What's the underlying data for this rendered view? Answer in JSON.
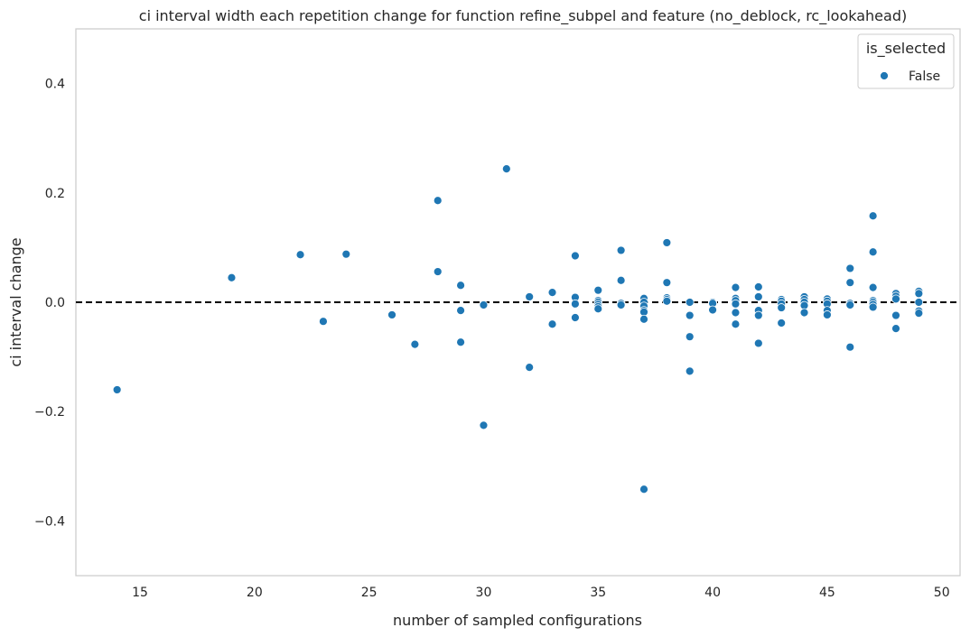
{
  "chart_data": {
    "type": "scatter",
    "title": "ci interval width each repetition change for function refine_subpel and feature (no_deblock, rc_lookahead)",
    "xlabel": "number of sampled configurations",
    "ylabel": "ci interval change",
    "xlim": [
      12.2,
      50.8
    ],
    "ylim": [
      -0.5,
      0.5
    ],
    "xticks": [
      15,
      20,
      25,
      30,
      35,
      40,
      45,
      50
    ],
    "yticks": [
      -0.4,
      -0.2,
      0.0,
      0.2,
      0.4
    ],
    "ytick_labels": [
      "−0.4",
      "−0.2",
      "0.0",
      "0.2",
      "0.4"
    ],
    "grid": false,
    "reference_line": {
      "y": 0.0,
      "style": "dashed",
      "color": "#000000"
    },
    "legend": {
      "title": "is_selected",
      "placement": "top-right",
      "entries": [
        "False"
      ]
    },
    "series": [
      {
        "name": "False",
        "color": "#1f77b4",
        "points": [
          [
            14,
            -0.16
          ],
          [
            19,
            0.045
          ],
          [
            22,
            0.087
          ],
          [
            23,
            -0.035
          ],
          [
            24,
            0.088
          ],
          [
            26,
            -0.023
          ],
          [
            27,
            -0.077
          ],
          [
            28,
            0.186
          ],
          [
            28,
            0.056
          ],
          [
            29,
            0.031
          ],
          [
            29,
            -0.015
          ],
          [
            29,
            -0.073
          ],
          [
            30,
            -0.005
          ],
          [
            30,
            -0.225
          ],
          [
            31,
            0.244
          ],
          [
            32,
            0.01
          ],
          [
            32,
            -0.119
          ],
          [
            33,
            0.018
          ],
          [
            33,
            -0.04
          ],
          [
            34,
            0.085
          ],
          [
            34,
            0.009
          ],
          [
            34,
            -0.003
          ],
          [
            34,
            -0.028
          ],
          [
            35,
            0.022
          ],
          [
            35,
            0.003
          ],
          [
            35,
            0.0
          ],
          [
            35,
            -0.004
          ],
          [
            35,
            -0.008
          ],
          [
            35,
            -0.012
          ],
          [
            36,
            0.095
          ],
          [
            36,
            0.04
          ],
          [
            36,
            -0.002
          ],
          [
            36,
            -0.005
          ],
          [
            37,
            0.007
          ],
          [
            37,
            0.0
          ],
          [
            37,
            -0.007
          ],
          [
            37,
            -0.015
          ],
          [
            37,
            -0.018
          ],
          [
            37,
            -0.031
          ],
          [
            37,
            -0.342
          ],
          [
            38,
            0.109
          ],
          [
            38,
            0.036
          ],
          [
            38,
            0.008
          ],
          [
            38,
            0.005
          ],
          [
            38,
            0.002
          ],
          [
            39,
            0.0
          ],
          [
            39,
            -0.024
          ],
          [
            39,
            -0.063
          ],
          [
            39,
            -0.126
          ],
          [
            40,
            0.0
          ],
          [
            40,
            -0.002
          ],
          [
            40,
            -0.014
          ],
          [
            41,
            0.027
          ],
          [
            41,
            0.007
          ],
          [
            41,
            0.003
          ],
          [
            41,
            -0.003
          ],
          [
            41,
            -0.019
          ],
          [
            41,
            -0.04
          ],
          [
            42,
            0.028
          ],
          [
            42,
            0.01
          ],
          [
            42,
            -0.015
          ],
          [
            42,
            -0.024
          ],
          [
            42,
            -0.075
          ],
          [
            43,
            0.005
          ],
          [
            43,
            0.002
          ],
          [
            43,
            -0.003
          ],
          [
            43,
            -0.01
          ],
          [
            43,
            -0.038
          ],
          [
            44,
            0.01
          ],
          [
            44,
            0.005
          ],
          [
            44,
            0.0
          ],
          [
            44,
            -0.006
          ],
          [
            44,
            -0.019
          ],
          [
            45,
            0.006
          ],
          [
            45,
            0.002
          ],
          [
            45,
            -0.003
          ],
          [
            45,
            -0.015
          ],
          [
            45,
            -0.023
          ],
          [
            46,
            0.062
          ],
          [
            46,
            0.036
          ],
          [
            46,
            -0.002
          ],
          [
            46,
            -0.005
          ],
          [
            46,
            -0.082
          ],
          [
            47,
            0.158
          ],
          [
            47,
            0.092
          ],
          [
            47,
            0.027
          ],
          [
            47,
            0.003
          ],
          [
            47,
            0.0
          ],
          [
            47,
            -0.004
          ],
          [
            47,
            -0.009
          ],
          [
            48,
            0.016
          ],
          [
            48,
            0.011
          ],
          [
            48,
            0.006
          ],
          [
            48,
            -0.024
          ],
          [
            48,
            -0.048
          ],
          [
            49,
            0.02
          ],
          [
            49,
            0.016
          ],
          [
            49,
            0.0
          ],
          [
            49,
            -0.016
          ],
          [
            49,
            -0.02
          ]
        ]
      }
    ]
  }
}
